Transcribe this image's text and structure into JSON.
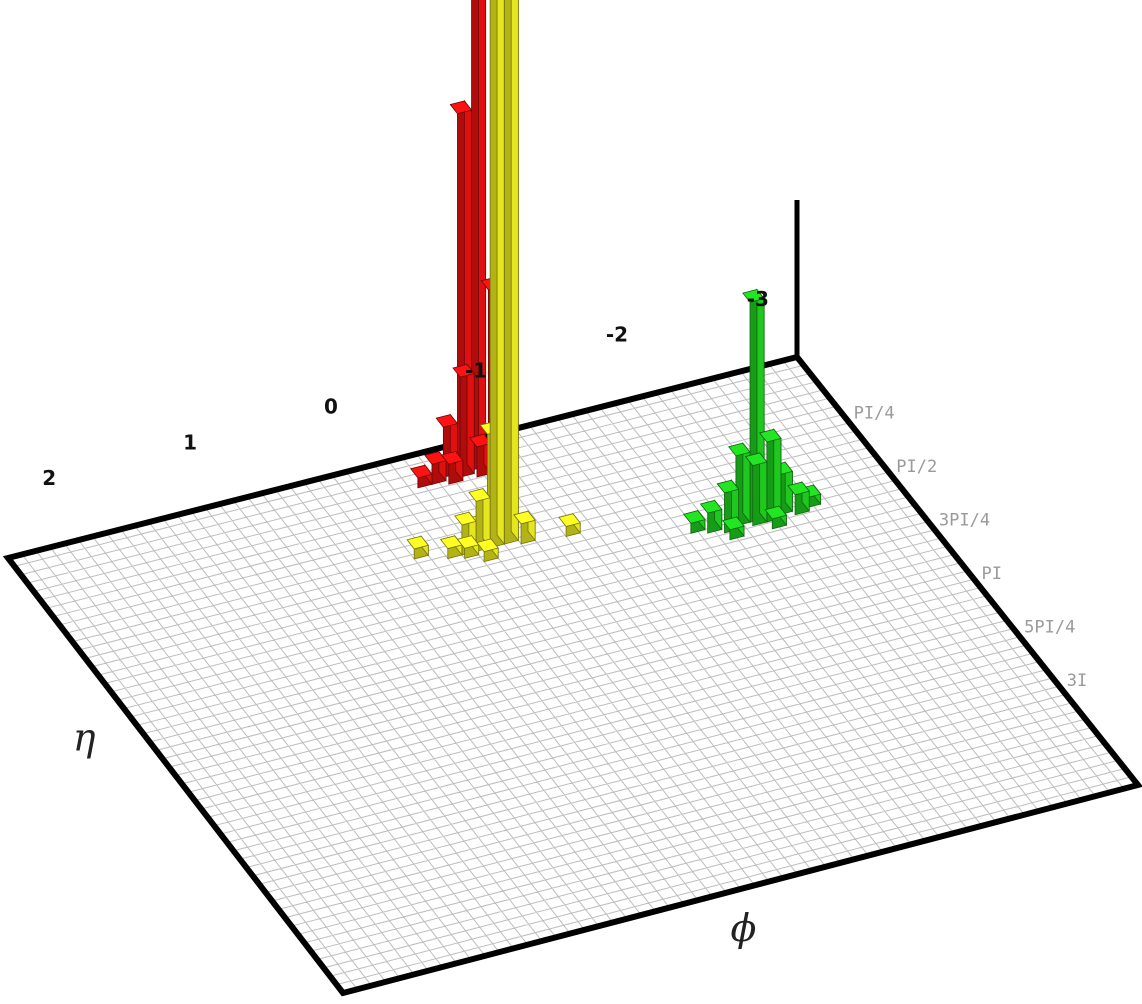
{
  "chart_data": {
    "type": "lego-histogram-3d",
    "axes": {
      "eta": {
        "label": "η",
        "tick_labels": [
          "2",
          "1",
          "0",
          "-1",
          "-2",
          "-3"
        ],
        "ticks": [
          2,
          1,
          0,
          -1,
          -2,
          -3
        ]
      },
      "phi": {
        "label": "ϕ",
        "tick_labels": [
          "PI/4",
          "PI/2",
          "3PI/4",
          "PI",
          "5PI/4",
          "3I"
        ]
      }
    },
    "grid": true,
    "series": [
      {
        "color": "#e01010",
        "eta_center": -0.9,
        "phi_center": 0.3,
        "peak_height": 0.95,
        "towers": [
          {
            "d_eta": 0.0,
            "d_phi": 0.0,
            "h": 0.95
          },
          {
            "d_eta": 0.1,
            "d_phi": 0.0,
            "h": 0.36
          },
          {
            "d_eta": -0.1,
            "d_phi": 0.05,
            "h": 0.18
          },
          {
            "d_eta": 0.1,
            "d_phi": 0.05,
            "h": 0.1
          },
          {
            "d_eta": 0.2,
            "d_phi": 0.0,
            "h": 0.05
          },
          {
            "d_eta": 0.3,
            "d_phi": 0.05,
            "h": 0.02
          },
          {
            "d_eta": 0.4,
            "d_phi": 0.05,
            "h": 0.01
          },
          {
            "d_eta": -0.2,
            "d_phi": 0.05,
            "h": 0.02
          },
          {
            "d_eta": 0.2,
            "d_phi": 0.1,
            "h": 0.02
          },
          {
            "d_eta": 0.0,
            "d_phi": 0.1,
            "h": 0.03
          },
          {
            "d_eta": -0.1,
            "d_phi": 0.1,
            "h": 0.01
          },
          {
            "d_eta": 0.1,
            "d_phi": -0.05,
            "h": 0.02
          }
        ]
      },
      {
        "color": "#e6e61e",
        "eta_center": -0.75,
        "phi_center": 1.3,
        "peak_height": 0.86,
        "towers": [
          {
            "d_eta": 0.0,
            "d_phi": 0.0,
            "h": 0.86
          },
          {
            "d_eta": 0.1,
            "d_phi": 0.0,
            "h": 0.63
          },
          {
            "d_eta": 0.1,
            "d_phi": -0.05,
            "h": 0.11
          },
          {
            "d_eta": 0.2,
            "d_phi": 0.0,
            "h": 0.05
          },
          {
            "d_eta": 0.3,
            "d_phi": 0.0,
            "h": 0.03
          },
          {
            "d_eta": 0.2,
            "d_phi": -0.05,
            "h": 0.02
          },
          {
            "d_eta": -0.1,
            "d_phi": 0.05,
            "h": 0.02
          },
          {
            "d_eta": 0.3,
            "d_phi": 0.05,
            "h": 0.01
          },
          {
            "d_eta": 0.4,
            "d_phi": 0.0,
            "h": 0.01
          },
          {
            "d_eta": 0.6,
            "d_phi": -0.1,
            "h": 0.01
          },
          {
            "d_eta": -0.4,
            "d_phi": 0.1,
            "h": 0.01
          },
          {
            "d_eta": 0.2,
            "d_phi": 0.15,
            "h": 0.01
          }
        ]
      },
      {
        "color": "#1ec81e",
        "eta_center": -2.3,
        "phi_center": 1.8,
        "peak_height": 0.22,
        "towers": [
          {
            "d_eta": 0.0,
            "d_phi": 0.0,
            "h": 0.22
          },
          {
            "d_eta": 0.0,
            "d_phi": 0.05,
            "h": 0.06
          },
          {
            "d_eta": -0.1,
            "d_phi": 0.05,
            "h": 0.08
          },
          {
            "d_eta": 0.1,
            "d_phi": 0.0,
            "h": 0.07
          },
          {
            "d_eta": -0.2,
            "d_phi": 0.0,
            "h": 0.04
          },
          {
            "d_eta": 0.2,
            "d_phi": 0.05,
            "h": 0.04
          },
          {
            "d_eta": 0.0,
            "d_phi": -0.05,
            "h": 0.03
          },
          {
            "d_eta": 0.1,
            "d_phi": -0.1,
            "h": 0.02
          },
          {
            "d_eta": -0.3,
            "d_phi": 0.05,
            "h": 0.02
          },
          {
            "d_eta": 0.3,
            "d_phi": 0.0,
            "h": 0.02
          },
          {
            "d_eta": -0.1,
            "d_phi": 0.15,
            "h": 0.01
          },
          {
            "d_eta": 0.2,
            "d_phi": 0.15,
            "h": 0.01
          },
          {
            "d_eta": -0.4,
            "d_phi": 0.0,
            "h": 0.01
          },
          {
            "d_eta": 0.4,
            "d_phi": -0.05,
            "h": 0.01
          }
        ]
      }
    ]
  }
}
